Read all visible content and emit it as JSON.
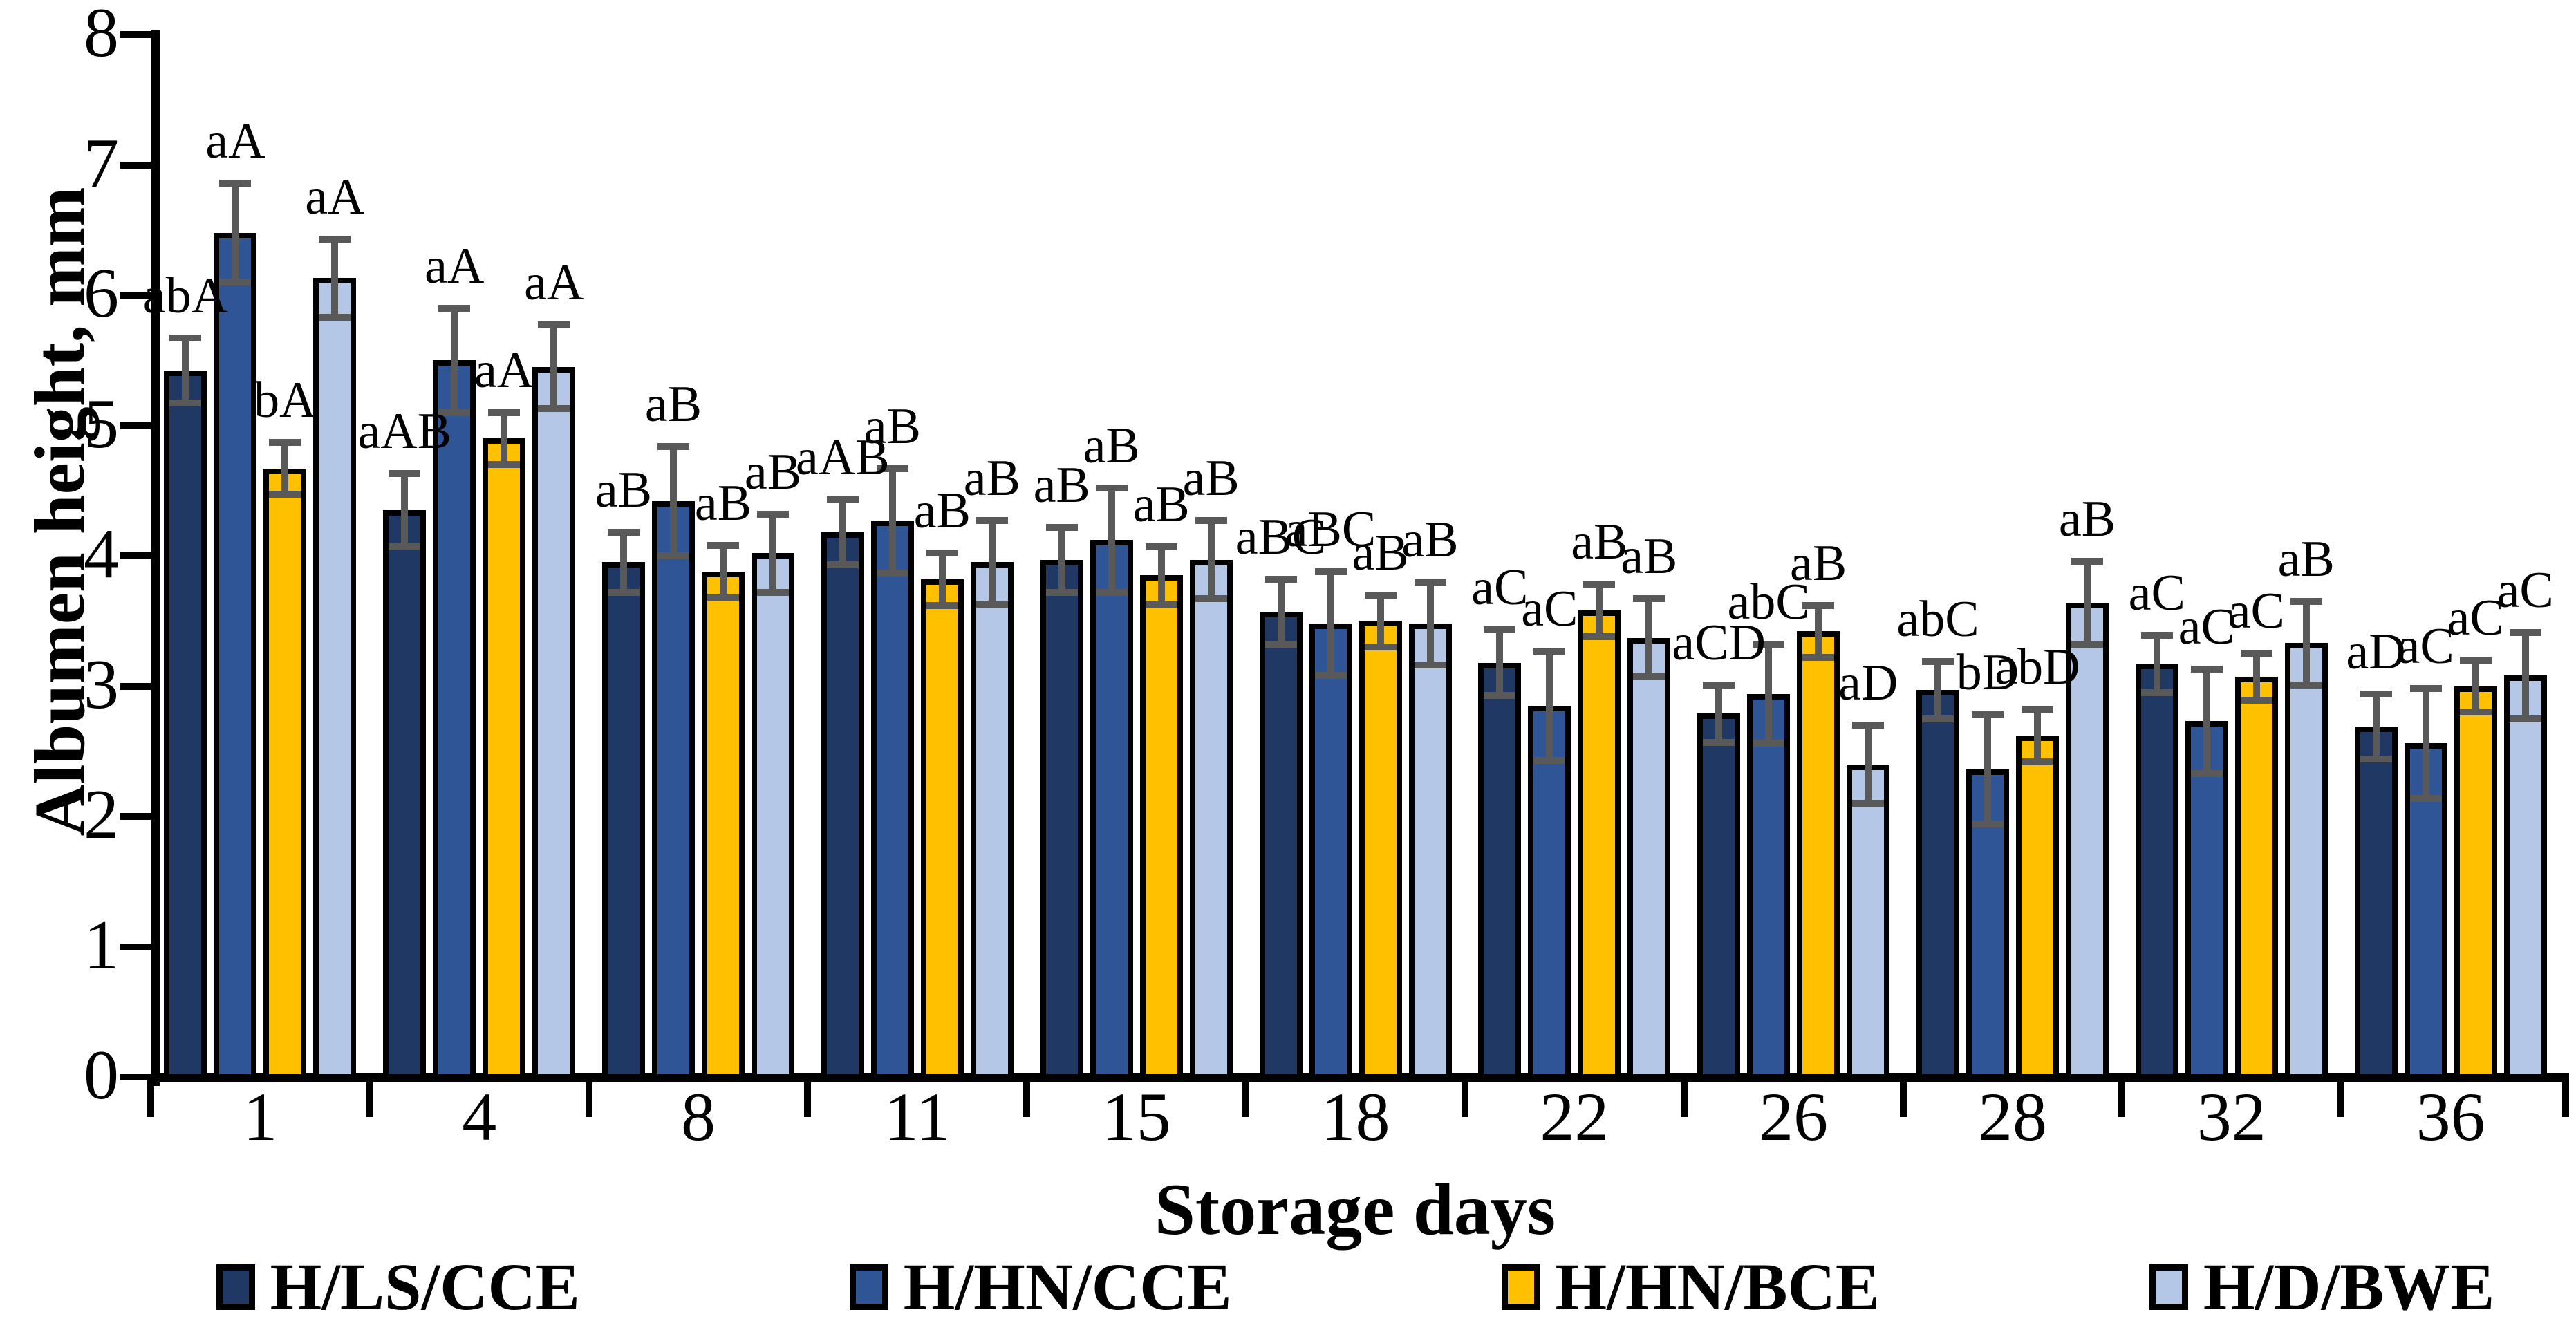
{
  "chart_data": {
    "type": "bar",
    "title": "",
    "xlabel": "Storage days",
    "ylabel": "Albumen height, mm",
    "ylim": [
      0,
      8
    ],
    "yticks": [
      0,
      1,
      2,
      3,
      4,
      5,
      6,
      7,
      8
    ],
    "grid": false,
    "legend_position": "bottom",
    "error_bar_color": "#595959",
    "axis_color": "#000000",
    "categories": [
      "1",
      "4",
      "8",
      "11",
      "15",
      "18",
      "22",
      "26",
      "28",
      "32",
      "36"
    ],
    "series": [
      {
        "name": "H/LS/CCE",
        "color": "#1F3864",
        "values": [
          5.42,
          4.35,
          3.95,
          4.18,
          3.97,
          3.57,
          3.18,
          2.79,
          2.97,
          3.17,
          2.69
        ],
        "errors": [
          0.25,
          0.28,
          0.23,
          0.25,
          0.25,
          0.25,
          0.25,
          0.22,
          0.22,
          0.22,
          0.25
        ],
        "labels": [
          "abA",
          "aAB",
          "aB",
          "aAB",
          "aB",
          "aBC",
          "aC",
          "aCD",
          "abC",
          "aC",
          "aD"
        ]
      },
      {
        "name": "H/HN/CCE",
        "color": "#2F5597",
        "values": [
          6.48,
          5.5,
          4.42,
          4.27,
          4.12,
          3.48,
          2.85,
          2.94,
          2.36,
          2.73,
          2.56
        ],
        "errors": [
          0.38,
          0.4,
          0.42,
          0.4,
          0.4,
          0.4,
          0.42,
          0.38,
          0.42,
          0.4,
          0.42
        ],
        "labels": [
          "aA",
          "aA",
          "aB",
          "aB",
          "aB",
          "aBC",
          "aC",
          "abC",
          "bD",
          "aC",
          "aC"
        ]
      },
      {
        "name": "H/HN/BCE",
        "color": "#FFC000",
        "values": [
          4.67,
          4.9,
          3.88,
          3.82,
          3.85,
          3.5,
          3.58,
          3.42,
          2.62,
          3.07,
          3.0
        ],
        "errors": [
          0.2,
          0.2,
          0.2,
          0.2,
          0.22,
          0.2,
          0.2,
          0.2,
          0.2,
          0.18,
          0.2
        ],
        "labels": [
          "bA",
          "aA",
          "aB",
          "aB",
          "aB",
          "aB",
          "aB",
          "aB",
          "abD",
          "aC",
          "aC"
        ]
      },
      {
        "name": "H/D/BWE",
        "color": "#B4C7E7",
        "values": [
          6.13,
          5.45,
          4.02,
          3.95,
          3.97,
          3.48,
          3.37,
          2.4,
          3.64,
          3.33,
          3.08
        ],
        "errors": [
          0.3,
          0.32,
          0.3,
          0.32,
          0.3,
          0.32,
          0.3,
          0.3,
          0.32,
          0.32,
          0.33
        ],
        "labels": [
          "aA",
          "aA",
          "aB",
          "aB",
          "aB",
          "aB",
          "aB",
          "aD",
          "aB",
          "aB",
          "aC"
        ]
      }
    ]
  }
}
